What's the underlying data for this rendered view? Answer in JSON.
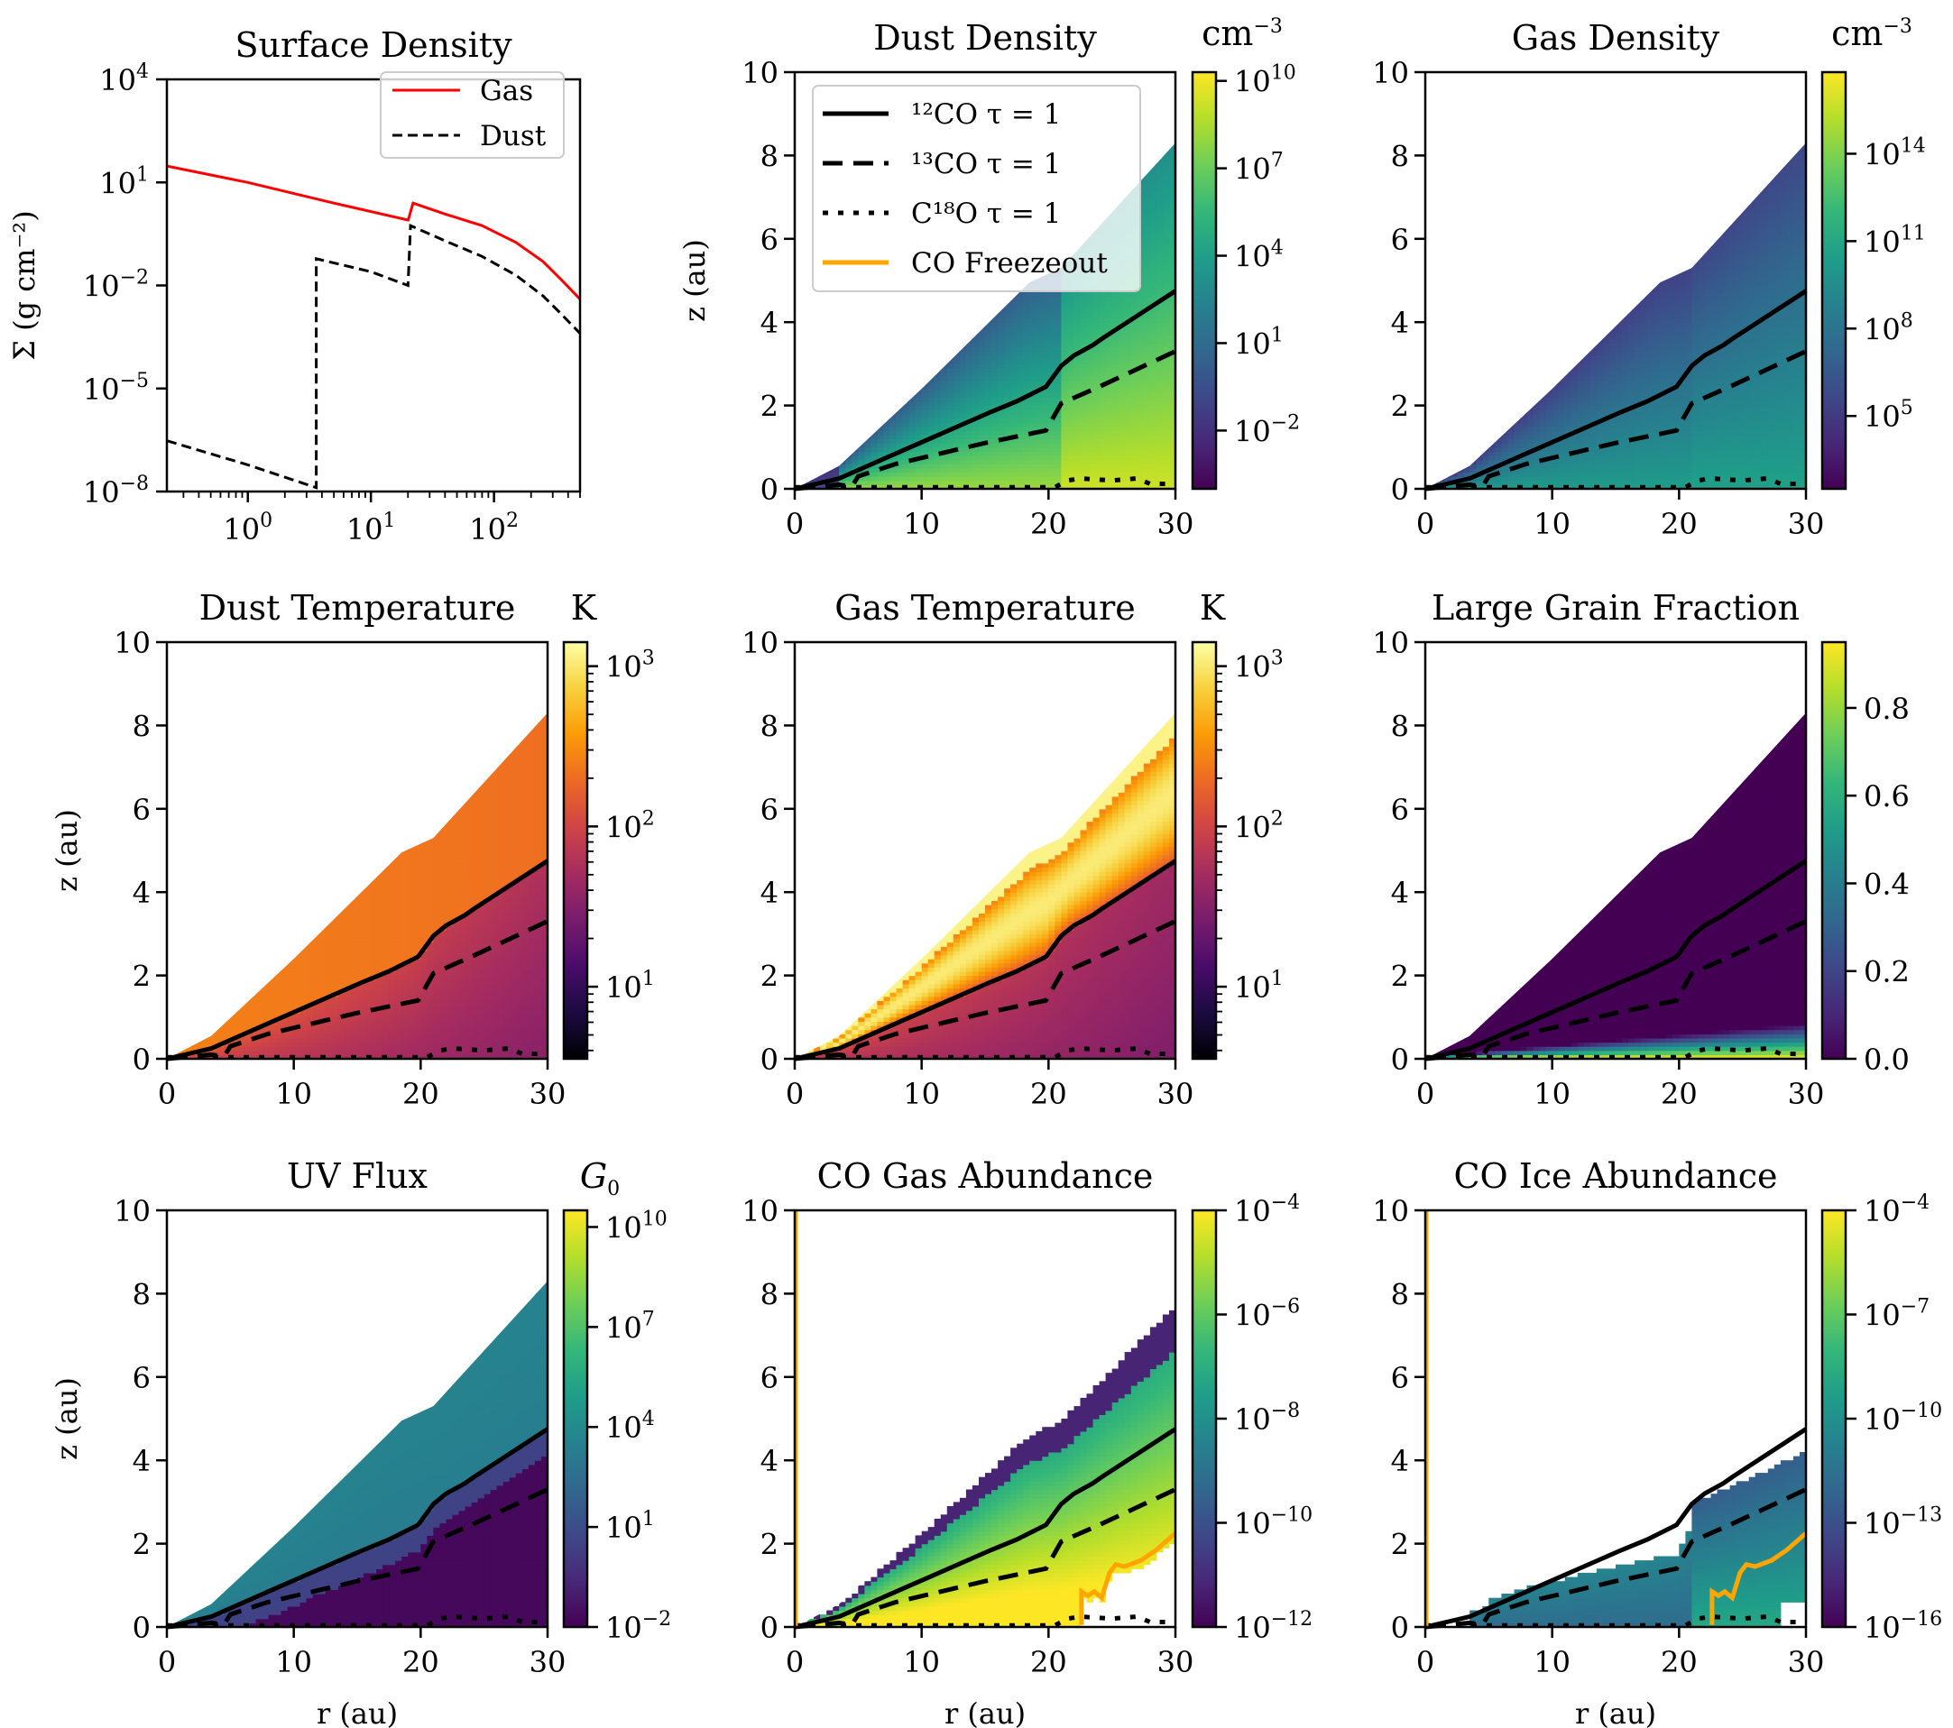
{
  "figure": {
    "colors": {
      "gas_line": "#ff0000",
      "dust_line": "#000000",
      "freezeout": "#ffa500",
      "tau_lines": "#000000",
      "viridis": [
        "#440154",
        "#482878",
        "#3e4989",
        "#31688e",
        "#26828e",
        "#1f9e89",
        "#35b779",
        "#6ece58",
        "#b5de2b",
        "#fde725"
      ],
      "inferno": [
        "#000004",
        "#1b0c41",
        "#4a0c6b",
        "#781c6d",
        "#a52c60",
        "#cf4446",
        "#ed6925",
        "#fb9b06",
        "#f7d13d",
        "#fcffa4"
      ]
    },
    "contour_legend": [
      {
        "label": "¹²CO τ = 1",
        "style": "solid"
      },
      {
        "label": "¹³CO τ = 1",
        "style": "dashed"
      },
      {
        "label": "C¹⁸O τ = 1",
        "style": "dotted"
      },
      {
        "label": "CO Freezeout",
        "style": "solid-orange"
      }
    ]
  },
  "chart_data": [
    {
      "id": "surface-density",
      "type": "line",
      "title": "Surface Density",
      "xlabel": "",
      "ylabel": "Σ (g cm⁻²)",
      "xscale": "log",
      "yscale": "log",
      "xlim": [
        0.22,
        500
      ],
      "ylim": [
        1e-08,
        10000.0
      ],
      "xticks": [
        {
          "v": 1,
          "base": "10",
          "exp": "0"
        },
        {
          "v": 10,
          "base": "10",
          "exp": "1"
        },
        {
          "v": 100,
          "base": "10",
          "exp": "2"
        }
      ],
      "yticks": [
        {
          "v": 10000.0,
          "base": "10",
          "exp": "4"
        },
        {
          "v": 10,
          "base": "10",
          "exp": "1"
        },
        {
          "v": 0.01,
          "base": "10",
          "exp": "−2"
        },
        {
          "v": 1e-05,
          "base": "10",
          "exp": "−5"
        },
        {
          "v": 1e-08,
          "base": "10",
          "exp": "−8"
        }
      ],
      "legend": {
        "position": "top-right"
      },
      "series": [
        {
          "name": "Gas",
          "style": "solid",
          "x": [
            0.22,
            1,
            5,
            20,
            20.1,
            22,
            40,
            80,
            150,
            250,
            350,
            500
          ],
          "y": [
            30,
            10,
            2.5,
            0.8,
            0.8,
            2.5,
            1.2,
            0.55,
            0.18,
            0.05,
            0.015,
            0.004
          ]
        },
        {
          "name": "Dust",
          "style": "dashed",
          "x": [
            0.22,
            1,
            3.6,
            3.6,
            10,
            20,
            21,
            40,
            80,
            150,
            250,
            350,
            500
          ],
          "y": [
            3e-07,
            6e-08,
            1.3e-08,
            0.06,
            0.025,
            0.01,
            0.55,
            0.2,
            0.07,
            0.02,
            0.005,
            0.0015,
            0.0004
          ]
        }
      ]
    },
    {
      "id": "dust-density",
      "type": "heatmap",
      "title": "Dust Density",
      "cbar_unit": "cm⁻³",
      "cmap": "viridis",
      "cscale": "log",
      "clim_exp": [
        -4,
        10.3
      ],
      "cbar_ticks": [
        {
          "v": 10,
          "base": "10",
          "exp": "10"
        },
        {
          "v": 7,
          "base": "10",
          "exp": "7"
        },
        {
          "v": 4,
          "base": "10",
          "exp": "4"
        },
        {
          "v": 1,
          "base": "10",
          "exp": "1"
        },
        {
          "v": -2,
          "base": "10",
          "exp": "−2"
        }
      ],
      "field": "dustdens",
      "ylabel": "z (au)",
      "xlabel": "",
      "show_legend": true
    },
    {
      "id": "gas-density",
      "type": "heatmap",
      "title": "Gas Density",
      "cbar_unit": "cm⁻³",
      "cmap": "viridis",
      "cscale": "log",
      "clim_exp": [
        2.5,
        16.8
      ],
      "cbar_ticks": [
        {
          "v": 14,
          "base": "10",
          "exp": "14"
        },
        {
          "v": 11,
          "base": "10",
          "exp": "11"
        },
        {
          "v": 8,
          "base": "10",
          "exp": "8"
        },
        {
          "v": 5,
          "base": "10",
          "exp": "5"
        }
      ],
      "field": "gasdens",
      "ylabel": "",
      "xlabel": ""
    },
    {
      "id": "dust-temperature",
      "type": "heatmap",
      "title": "Dust Temperature",
      "cbar_unit": "K",
      "cmap": "inferno",
      "cscale": "log",
      "clim_exp": [
        0.55,
        3.15
      ],
      "cbar_ticks": [
        {
          "v": 3,
          "base": "10",
          "exp": "3"
        },
        {
          "v": 2,
          "base": "10",
          "exp": "2"
        },
        {
          "v": 1,
          "base": "10",
          "exp": "1"
        }
      ],
      "field": "dusttemp",
      "ylabel": "z (au)",
      "xlabel": ""
    },
    {
      "id": "gas-temperature",
      "type": "heatmap",
      "title": "Gas Temperature",
      "cbar_unit": "K",
      "cmap": "inferno",
      "cscale": "log",
      "clim_exp": [
        0.55,
        3.15
      ],
      "cbar_ticks": [
        {
          "v": 3,
          "base": "10",
          "exp": "3"
        },
        {
          "v": 2,
          "base": "10",
          "exp": "2"
        },
        {
          "v": 1,
          "base": "10",
          "exp": "1"
        }
      ],
      "field": "gastemp",
      "ylabel": "",
      "xlabel": ""
    },
    {
      "id": "large-grain-fraction",
      "type": "heatmap",
      "title": "Large Grain Fraction",
      "cbar_unit": "",
      "cmap": "viridis",
      "cscale": "linear",
      "clim": [
        0,
        0.95
      ],
      "cbar_ticks": [
        {
          "v": 0.8,
          "label": "0.8"
        },
        {
          "v": 0.6,
          "label": "0.6"
        },
        {
          "v": 0.4,
          "label": "0.4"
        },
        {
          "v": 0.2,
          "label": "0.2"
        },
        {
          "v": 0.0,
          "label": "0.0"
        }
      ],
      "field": "grainfrac",
      "ylabel": "",
      "xlabel": ""
    },
    {
      "id": "uv-flux",
      "type": "heatmap",
      "title": "UV Flux",
      "cbar_unit": "G₀",
      "cmap": "viridis",
      "cscale": "log",
      "clim_exp": [
        -2,
        10.5
      ],
      "cbar_ticks": [
        {
          "v": 10,
          "base": "10",
          "exp": "10"
        },
        {
          "v": 7,
          "base": "10",
          "exp": "7"
        },
        {
          "v": 4,
          "base": "10",
          "exp": "4"
        },
        {
          "v": 1,
          "base": "10",
          "exp": "1"
        },
        {
          "v": -2,
          "base": "10",
          "exp": "−2"
        }
      ],
      "field": "uv",
      "ylabel": "z (au)",
      "xlabel": "r (au)"
    },
    {
      "id": "co-gas-abundance",
      "type": "heatmap",
      "title": "CO Gas Abundance",
      "cbar_unit": "",
      "cmap": "viridis",
      "cscale": "log",
      "clim_exp": [
        -12,
        -4
      ],
      "cbar_ticks": [
        {
          "v": -4,
          "base": "10",
          "exp": "−4"
        },
        {
          "v": -6,
          "base": "10",
          "exp": "−6"
        },
        {
          "v": -8,
          "base": "10",
          "exp": "−8"
        },
        {
          "v": -10,
          "base": "10",
          "exp": "−10"
        },
        {
          "v": -12,
          "base": "10",
          "exp": "−12"
        }
      ],
      "field": "cogas",
      "ylabel": "",
      "xlabel": "r (au)",
      "freezeout": true
    },
    {
      "id": "co-ice-abundance",
      "type": "heatmap",
      "title": "CO Ice Abundance",
      "cbar_unit": "",
      "cmap": "viridis",
      "cscale": "log",
      "clim_exp": [
        -16,
        -4
      ],
      "cbar_ticks": [
        {
          "v": -4,
          "base": "10",
          "exp": "−4"
        },
        {
          "v": -7,
          "base": "10",
          "exp": "−7"
        },
        {
          "v": -10,
          "base": "10",
          "exp": "−10"
        },
        {
          "v": -13,
          "base": "10",
          "exp": "−13"
        },
        {
          "v": -16,
          "base": "10",
          "exp": "−16"
        }
      ],
      "field": "coice",
      "ylabel": "",
      "xlabel": "r (au)",
      "freezeout": true
    }
  ],
  "shared_axes": {
    "r_range_au": [
      0,
      30
    ],
    "z_range_au": [
      0,
      10
    ],
    "xticks": [
      0,
      10,
      20,
      30
    ],
    "yticks": [
      0,
      2,
      4,
      6,
      8,
      10
    ],
    "disk_surface": {
      "r": [
        0,
        3.5,
        10,
        18.5,
        21,
        30
      ],
      "z": [
        0,
        0.55,
        2.4,
        4.95,
        5.3,
        8.3
      ]
    },
    "tau12": {
      "r": [
        0,
        3.5,
        8,
        15.5,
        17.5,
        19.8,
        21,
        22,
        23.5,
        24.2,
        30
      ],
      "z": [
        0,
        0.25,
        0.85,
        1.85,
        2.1,
        2.45,
        2.95,
        3.2,
        3.45,
        3.6,
        4.75
      ]
    },
    "tau13": {
      "r": [
        0,
        3.5,
        4.5,
        5,
        8,
        15,
        19.8,
        21,
        24,
        30
      ],
      "z": [
        0,
        0.1,
        0.05,
        0.3,
        0.6,
        1.1,
        1.4,
        2.05,
        2.45,
        3.3
      ]
    },
    "tauC18": {
      "r": [
        0,
        20.5,
        21.5,
        22.5,
        25,
        27,
        28,
        30
      ],
      "z": [
        0.04,
        0.04,
        0.2,
        0.25,
        0.2,
        0.25,
        0.12,
        0.12
      ]
    },
    "freezeout": {
      "r": [
        22.6,
        22.6,
        23.1,
        23.6,
        24.2,
        24.8,
        25.3,
        26,
        27.3,
        28.5,
        30
      ],
      "z": [
        0.05,
        0.85,
        0.75,
        0.85,
        0.7,
        1.3,
        1.5,
        1.45,
        1.6,
        1.85,
        2.25
      ]
    }
  }
}
